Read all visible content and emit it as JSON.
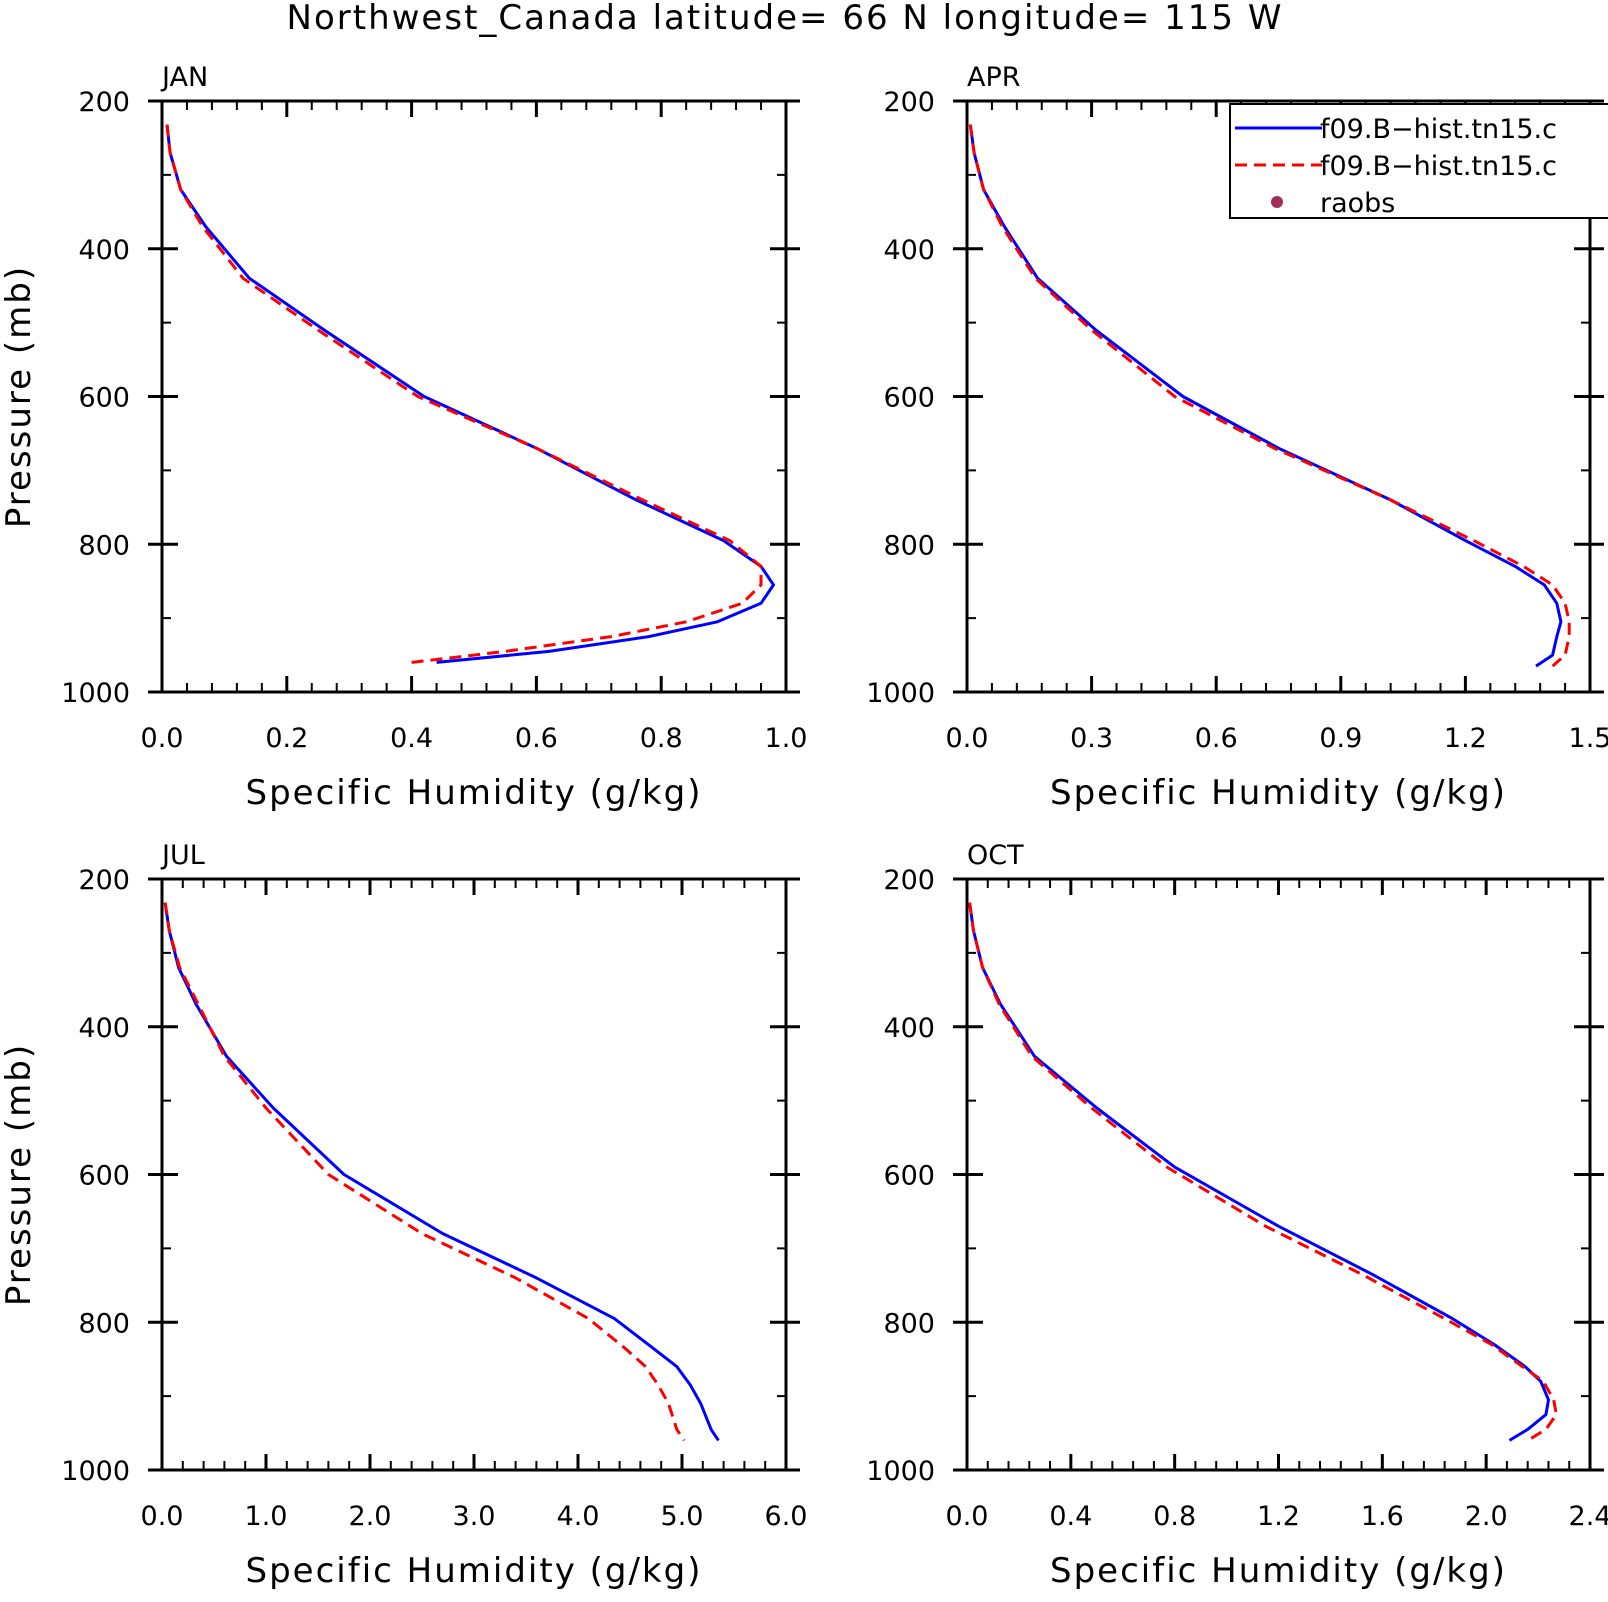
{
  "title": "Northwest_Canada  latitude= 66 N longitude= 115 W",
  "legend": {
    "entries": [
      {
        "label": "f09.B−hist.tn15.c",
        "color": "#0000ff",
        "style": "solid"
      },
      {
        "label": "f09.B−hist.tn15.c",
        "color": "#ff0000",
        "style": "dashed"
      },
      {
        "label": "raobs",
        "color": "#a0305a",
        "style": "dot"
      }
    ]
  },
  "chart_data": [
    {
      "type": "line",
      "panel": "JAN",
      "xlabel": "Specific Humidity (g/kg)",
      "ylabel": "Pressure (mb)",
      "xlim": [
        0,
        1.0
      ],
      "ylim": [
        1000,
        200
      ],
      "xticks": [
        "0.0",
        "0.2",
        "0.4",
        "0.6",
        "0.8",
        "1.0"
      ],
      "yticks": [
        "200",
        "400",
        "600",
        "800",
        "1000"
      ],
      "series": [
        {
          "color": "#0000ff",
          "style": "solid",
          "x": [
            0.008,
            0.013,
            0.03,
            0.07,
            0.14,
            0.26,
            0.42,
            0.6,
            0.76,
            0.9,
            0.96,
            0.98,
            0.96,
            0.89,
            0.78,
            0.62,
            0.44
          ],
          "y": [
            232,
            270,
            320,
            370,
            440,
            510,
            600,
            670,
            740,
            795,
            830,
            855,
            880,
            905,
            925,
            945,
            960
          ]
        },
        {
          "color": "#ff0000",
          "style": "dashed",
          "x": [
            0.008,
            0.013,
            0.03,
            0.065,
            0.13,
            0.25,
            0.41,
            0.6,
            0.77,
            0.91,
            0.96,
            0.96,
            0.93,
            0.84,
            0.72,
            0.55,
            0.4
          ],
          "y": [
            232,
            270,
            320,
            370,
            440,
            510,
            600,
            670,
            740,
            795,
            830,
            855,
            880,
            905,
            925,
            945,
            960
          ]
        }
      ]
    },
    {
      "type": "line",
      "panel": "APR",
      "xlabel": "Specific Humidity (g/kg)",
      "ylabel": "",
      "xlim": [
        0,
        1.5
      ],
      "ylim": [
        1000,
        200
      ],
      "xticks": [
        "0.0",
        "0.3",
        "0.6",
        "0.9",
        "1.2",
        "1.5"
      ],
      "yticks": [
        "200",
        "400",
        "600",
        "800",
        "1000"
      ],
      "series": [
        {
          "color": "#0000ff",
          "style": "solid",
          "x": [
            0.008,
            0.017,
            0.04,
            0.09,
            0.17,
            0.31,
            0.52,
            0.75,
            1.02,
            1.2,
            1.32,
            1.39,
            1.42,
            1.43,
            1.42,
            1.41,
            1.37
          ],
          "y": [
            232,
            270,
            320,
            370,
            440,
            510,
            600,
            670,
            740,
            795,
            830,
            855,
            880,
            905,
            925,
            950,
            965
          ]
        },
        {
          "color": "#ff0000",
          "style": "dashed",
          "x": [
            0.008,
            0.017,
            0.04,
            0.085,
            0.165,
            0.3,
            0.5,
            0.74,
            1.02,
            1.22,
            1.34,
            1.41,
            1.44,
            1.45,
            1.45,
            1.44,
            1.41
          ],
          "y": [
            232,
            270,
            320,
            370,
            440,
            510,
            600,
            670,
            740,
            795,
            830,
            855,
            880,
            905,
            925,
            950,
            965
          ]
        }
      ]
    },
    {
      "type": "line",
      "panel": "JUL",
      "xlabel": "Specific Humidity (g/kg)",
      "ylabel": "Pressure (mb)",
      "xlim": [
        0,
        6.0
      ],
      "ylim": [
        1000,
        200
      ],
      "xticks": [
        "0.0",
        "1.0",
        "2.0",
        "3.0",
        "4.0",
        "5.0",
        "6.0"
      ],
      "yticks": [
        "200",
        "400",
        "600",
        "800",
        "1000"
      ],
      "series": [
        {
          "color": "#0000ff",
          "style": "solid",
          "x": [
            0.03,
            0.07,
            0.16,
            0.33,
            0.62,
            1.07,
            1.75,
            2.7,
            3.6,
            4.35,
            4.72,
            4.95,
            5.08,
            5.18,
            5.28,
            5.35
          ],
          "y": [
            232,
            270,
            320,
            370,
            440,
            510,
            600,
            680,
            740,
            795,
            835,
            860,
            885,
            910,
            945,
            960
          ]
        },
        {
          "color": "#ff0000",
          "style": "dashed",
          "x": [
            0.03,
            0.07,
            0.17,
            0.35,
            0.6,
            1.0,
            1.6,
            2.5,
            3.4,
            4.1,
            4.45,
            4.65,
            4.77,
            4.87,
            4.95,
            5.02
          ],
          "y": [
            232,
            270,
            320,
            370,
            440,
            510,
            600,
            680,
            740,
            795,
            835,
            860,
            885,
            910,
            945,
            960
          ]
        }
      ]
    },
    {
      "type": "line",
      "panel": "OCT",
      "xlabel": "Specific Humidity (g/kg)",
      "ylabel": "",
      "xlim": [
        0,
        2.4
      ],
      "ylim": [
        1000,
        200
      ],
      "xticks": [
        "0.0",
        "0.4",
        "0.8",
        "1.2",
        "1.6",
        "2.0",
        "2.4"
      ],
      "yticks": [
        "200",
        "400",
        "600",
        "800",
        "1000"
      ],
      "series": [
        {
          "color": "#0000ff",
          "style": "solid",
          "x": [
            0.01,
            0.025,
            0.06,
            0.13,
            0.26,
            0.5,
            0.8,
            1.2,
            1.56,
            1.87,
            2.03,
            2.15,
            2.21,
            2.24,
            2.23,
            2.16,
            2.09
          ],
          "y": [
            232,
            270,
            320,
            370,
            440,
            510,
            590,
            670,
            735,
            795,
            830,
            860,
            880,
            905,
            925,
            945,
            960
          ]
        },
        {
          "color": "#ff0000",
          "style": "dashed",
          "x": [
            0.01,
            0.025,
            0.06,
            0.125,
            0.25,
            0.48,
            0.77,
            1.15,
            1.52,
            1.84,
            2.02,
            2.14,
            2.22,
            2.26,
            2.27,
            2.23,
            2.16
          ],
          "y": [
            232,
            270,
            320,
            370,
            440,
            510,
            590,
            670,
            735,
            795,
            830,
            860,
            880,
            905,
            925,
            945,
            960
          ]
        }
      ]
    }
  ]
}
